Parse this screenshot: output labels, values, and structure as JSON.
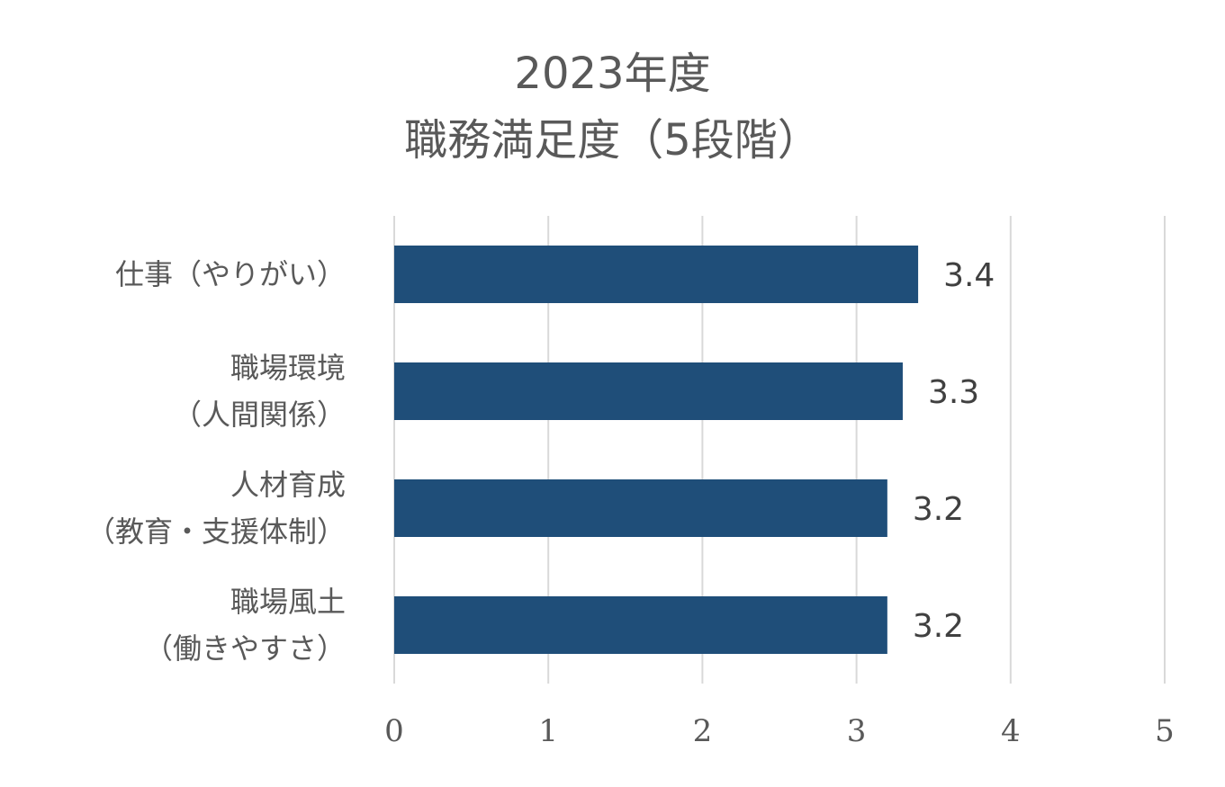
{
  "chart_data": {
    "type": "bar",
    "orientation": "horizontal",
    "title": [
      "2023年度",
      "職務満足度（5段階）"
    ],
    "categories": [
      [
        "仕事（やりがい）"
      ],
      [
        "職場環境",
        "（人間関係）"
      ],
      [
        "人材育成",
        "（教育・支援体制）"
      ],
      [
        "職場風土",
        "（働きやすさ）"
      ]
    ],
    "values": [
      3.4,
      3.3,
      3.2,
      3.2
    ],
    "data_labels": [
      "3.4",
      "3.3",
      "3.2",
      "3.2"
    ],
    "xlim": [
      0,
      5
    ],
    "x_ticks": [
      "0",
      "1",
      "2",
      "3",
      "4",
      "5"
    ],
    "grid": true,
    "bar_color": "#1f4e79",
    "grid_color": "#d9d9d9"
  }
}
